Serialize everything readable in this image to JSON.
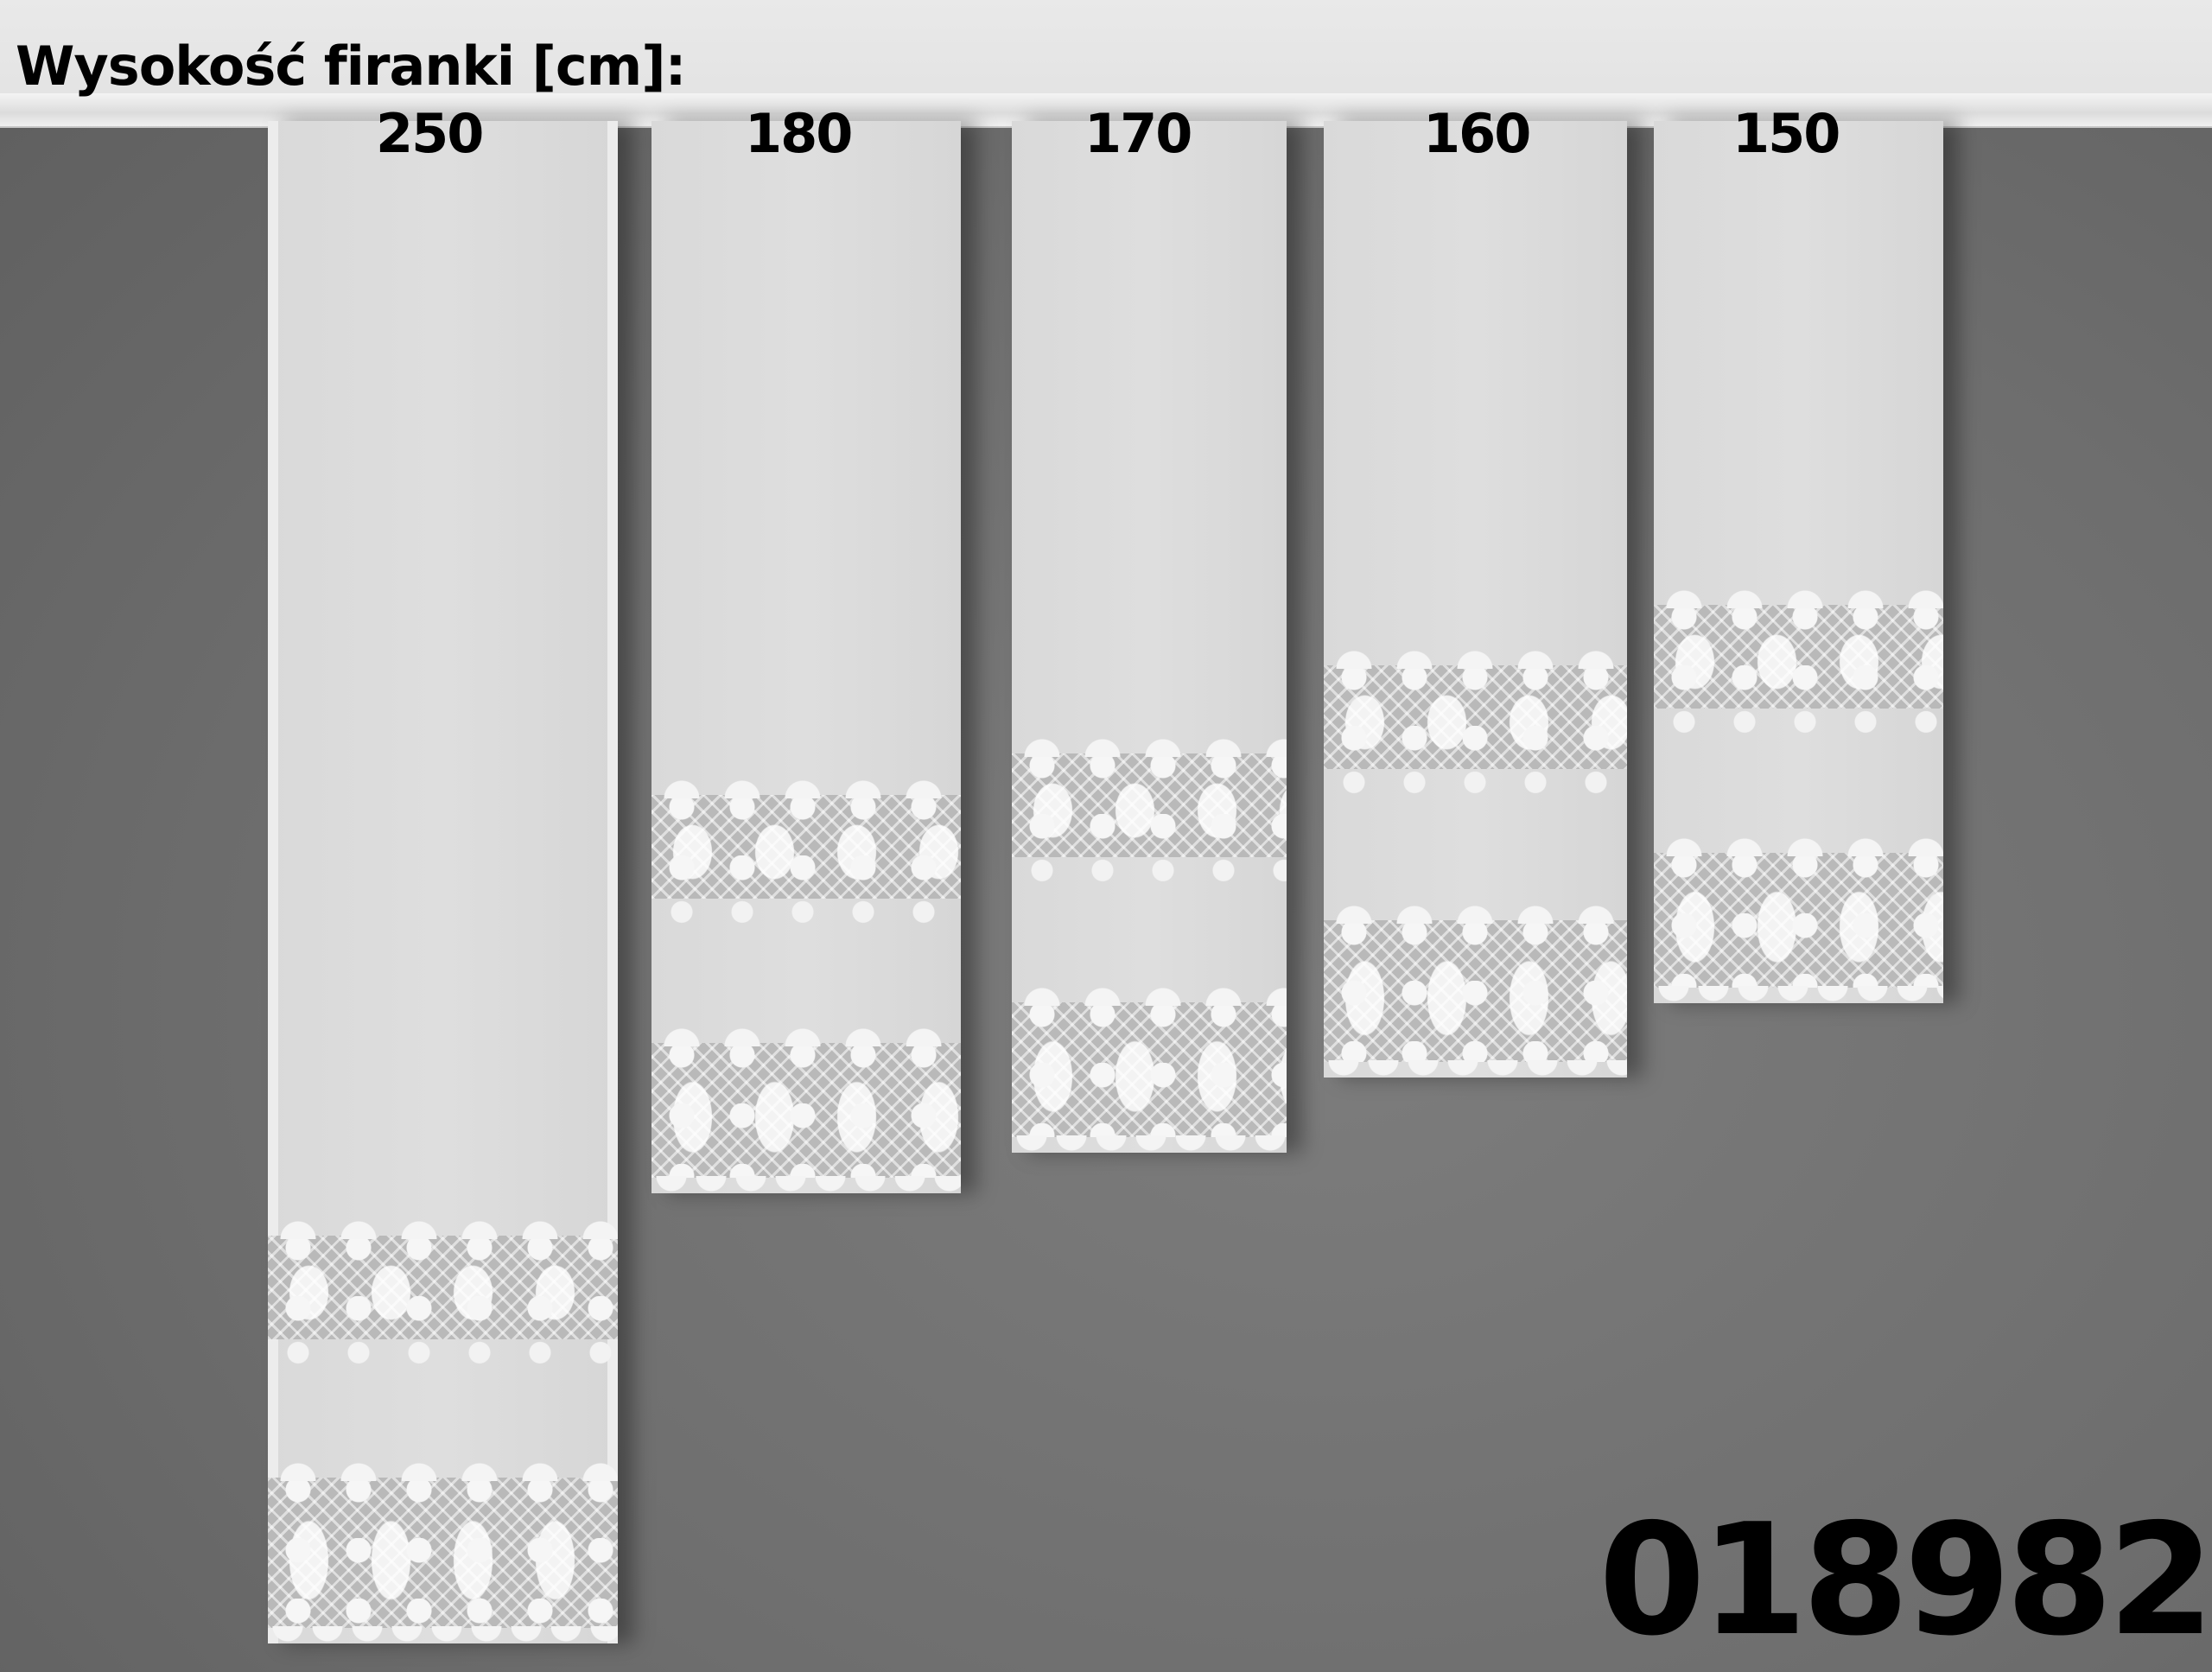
{
  "heading": "Wysokość firanki [cm]:",
  "curtain_heights": [
    "250",
    "180",
    "170",
    "160",
    "150"
  ],
  "product_code": "018982",
  "colors": {
    "wall": "#707070",
    "curtain": "#dcdcdc",
    "lace": "#f4f4f4",
    "text": "#000000"
  }
}
